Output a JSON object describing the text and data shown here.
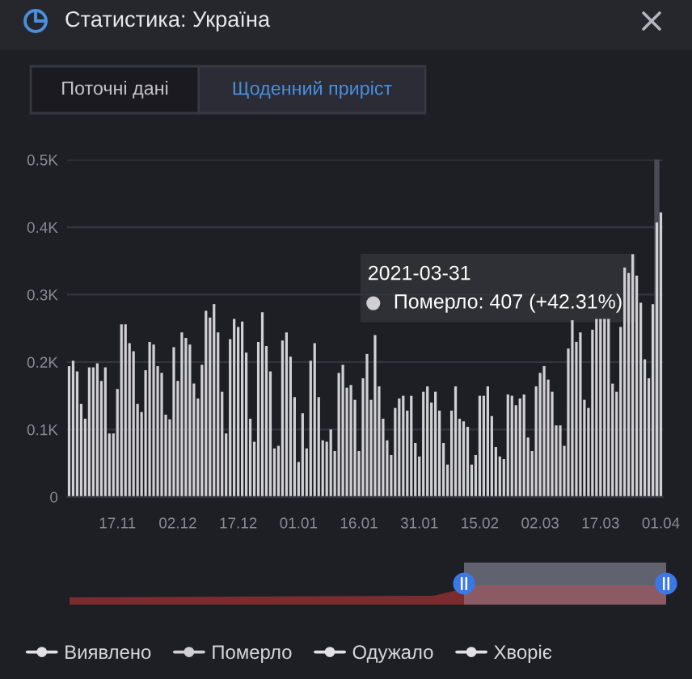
{
  "chart_data": {
    "type": "bar",
    "title": "Статистика: Україна",
    "annotations": [
      "Поточні дані",
      "Щоденний приріст",
      "2021-03-31",
      "Померло: 407 (+42.31%)"
    ],
    "x": [
      "2020-11-05",
      "2020-11-06",
      "2020-11-07",
      "2020-11-08",
      "2020-11-09",
      "2020-11-10",
      "2020-11-11",
      "2020-11-12",
      "2020-11-13",
      "2020-11-14",
      "2020-11-15",
      "2020-11-16",
      "2020-11-17",
      "2020-11-18",
      "2020-11-19",
      "2020-11-20",
      "2020-11-21",
      "2020-11-22",
      "2020-11-23",
      "2020-11-24",
      "2020-11-25",
      "2020-11-26",
      "2020-11-27",
      "2020-11-28",
      "2020-11-29",
      "2020-11-30",
      "2020-12-01",
      "2020-12-02",
      "2020-12-03",
      "2020-12-04",
      "2020-12-05",
      "2020-12-06",
      "2020-12-07",
      "2020-12-08",
      "2020-12-09",
      "2020-12-10",
      "2020-12-11",
      "2020-12-12",
      "2020-12-13",
      "2020-12-14",
      "2020-12-15",
      "2020-12-16",
      "2020-12-17",
      "2020-12-18",
      "2020-12-19",
      "2020-12-20",
      "2020-12-21",
      "2020-12-22",
      "2020-12-23",
      "2020-12-24",
      "2020-12-25",
      "2020-12-26",
      "2020-12-27",
      "2020-12-28",
      "2020-12-29",
      "2020-12-30",
      "2020-12-31",
      "2021-01-01",
      "2021-01-02",
      "2021-01-03",
      "2021-01-04",
      "2021-01-05",
      "2021-01-06",
      "2021-01-07",
      "2021-01-08",
      "2021-01-09",
      "2021-01-10",
      "2021-01-11",
      "2021-01-12",
      "2021-01-13",
      "2021-01-14",
      "2021-01-15",
      "2021-01-16",
      "2021-01-17",
      "2021-01-18",
      "2021-01-19",
      "2021-01-20",
      "2021-01-21",
      "2021-01-22",
      "2021-01-23",
      "2021-01-24",
      "2021-01-25",
      "2021-01-26",
      "2021-01-27",
      "2021-01-28",
      "2021-01-29",
      "2021-01-30",
      "2021-01-31",
      "2021-02-01",
      "2021-02-02",
      "2021-02-03",
      "2021-02-04",
      "2021-02-05",
      "2021-02-06",
      "2021-02-07",
      "2021-02-08",
      "2021-02-09",
      "2021-02-10",
      "2021-02-11",
      "2021-02-12",
      "2021-02-13",
      "2021-02-14",
      "2021-02-15",
      "2021-02-16",
      "2021-02-17",
      "2021-02-18",
      "2021-02-19",
      "2021-02-20",
      "2021-02-21",
      "2021-02-22",
      "2021-02-23",
      "2021-02-24",
      "2021-02-25",
      "2021-02-26",
      "2021-02-27",
      "2021-02-28",
      "2021-03-01",
      "2021-03-02",
      "2021-03-03",
      "2021-03-04",
      "2021-03-05",
      "2021-03-06",
      "2021-03-07",
      "2021-03-08",
      "2021-03-09",
      "2021-03-10",
      "2021-03-11",
      "2021-03-12",
      "2021-03-13",
      "2021-03-14",
      "2021-03-15",
      "2021-03-16",
      "2021-03-17",
      "2021-03-18",
      "2021-03-19",
      "2021-03-20",
      "2021-03-21",
      "2021-03-22",
      "2021-03-23",
      "2021-03-24",
      "2021-03-25",
      "2021-03-26",
      "2021-03-27",
      "2021-03-28",
      "2021-03-29",
      "2021-03-30",
      "2021-03-31",
      "2021-04-01"
    ],
    "series": [
      {
        "name": "Виявлено",
        "color": "#e2e2e6",
        "values": [
          null,
          null,
          null,
          null,
          null,
          null,
          null,
          null,
          null,
          null,
          null,
          null,
          null,
          null,
          null,
          null,
          null,
          null,
          null,
          null,
          null,
          null,
          null,
          null,
          null,
          null,
          null,
          null,
          null,
          null,
          null,
          null,
          null,
          null,
          null,
          null,
          null,
          null,
          null,
          null,
          null,
          null,
          null,
          null,
          null,
          null,
          null,
          null,
          null,
          null,
          null,
          null,
          null,
          null,
          null,
          null,
          null,
          null,
          null,
          null,
          null,
          null,
          null,
          null,
          null,
          null,
          null,
          null,
          null,
          null,
          null,
          null,
          null,
          null,
          null,
          null,
          null,
          null,
          null,
          null,
          null,
          null,
          null,
          null,
          null,
          null,
          null,
          null,
          null,
          null,
          null,
          null,
          null,
          null,
          null,
          null,
          null,
          null,
          null,
          null,
          null,
          null,
          null,
          null,
          null,
          null,
          null,
          null,
          null,
          null,
          null,
          null,
          null,
          null,
          null,
          null,
          null,
          null,
          null,
          null,
          null,
          null,
          null,
          null,
          null,
          null,
          null,
          null,
          null,
          null,
          null,
          null,
          null,
          null,
          null,
          null,
          null,
          null,
          null,
          null,
          null,
          null,
          null,
          null,
          null,
          null,
          null,
          null
        ]
      },
      {
        "name": "Померло",
        "color": "#cfcfd4",
        "values": [
          194,
          202,
          186,
          138,
          116,
          192,
          192,
          198,
          172,
          192,
          94,
          94,
          160,
          256,
          256,
          228,
          216,
          138,
          126,
          188,
          230,
          226,
          194,
          184,
          122,
          115,
          222,
          172,
          244,
          236,
          226,
          168,
          146,
          196,
          276,
          266,
          286,
          244,
          156,
          94,
          234,
          264,
          252,
          260,
          214,
          116,
          82,
          230,
          274,
          224,
          186,
          72,
          76,
          232,
          244,
          208,
          148,
          52,
          124,
          72,
          202,
          228,
          148,
          84,
          82,
          100,
          68,
          184,
          196,
          162,
          166,
          144,
          68,
          176,
          212,
          144,
          240,
          164,
          116,
          84,
          62,
          132,
          146,
          150,
          128,
          150,
          80,
          60,
          156,
          164,
          140,
          156,
          128,
          80,
          48,
          128,
          164,
          116,
          112,
          104,
          48,
          62,
          150,
          150,
          164,
          120,
          74,
          60,
          56,
          152,
          150,
          136,
          146,
          152,
          88,
          68,
          164,
          184,
          194,
          174,
          156,
          106,
          106,
          76,
          220,
          262,
          230,
          244,
          144,
          132,
          248,
          264,
          264,
          264,
          264,
          168,
          156,
          252,
          340,
          332,
          360,
          328,
          288,
          204,
          176,
          286,
          407,
          422
        ]
      },
      {
        "name": "Одужало",
        "color": "#e2e2e6",
        "values": [
          null,
          null,
          null,
          null,
          null,
          null,
          null,
          null,
          null,
          null,
          null,
          null,
          null,
          null,
          null,
          null,
          null,
          null,
          null,
          null,
          null,
          null,
          null,
          null,
          null,
          null,
          null,
          null,
          null,
          null,
          null,
          null,
          null,
          null,
          null,
          null,
          null,
          null,
          null,
          null,
          null,
          null,
          null,
          null,
          null,
          null,
          null,
          null,
          null,
          null,
          null,
          null,
          null,
          null,
          null,
          null,
          null,
          null,
          null,
          null,
          null,
          null,
          null,
          null,
          null,
          null,
          null,
          null,
          null,
          null,
          null,
          null,
          null,
          null,
          null,
          null,
          null,
          null,
          null,
          null,
          null,
          null,
          null,
          null,
          null,
          null,
          null,
          null,
          null,
          null,
          null,
          null,
          null,
          null,
          null,
          null,
          null,
          null,
          null,
          null,
          null,
          null,
          null,
          null,
          null,
          null,
          null,
          null,
          null,
          null,
          null,
          null,
          null,
          null,
          null,
          null,
          null,
          null,
          null,
          null,
          null,
          null,
          null,
          null,
          null,
          null,
          null,
          null,
          null,
          null,
          null,
          null,
          null,
          null,
          null,
          null,
          null,
          null,
          null,
          null,
          null,
          null,
          null,
          null,
          null,
          null,
          null,
          null
        ]
      },
      {
        "name": "Хворіє",
        "color": "#e2e2e6",
        "values": [
          null,
          null,
          null,
          null,
          null,
          null,
          null,
          null,
          null,
          null,
          null,
          null,
          null,
          null,
          null,
          null,
          null,
          null,
          null,
          null,
          null,
          null,
          null,
          null,
          null,
          null,
          null,
          null,
          null,
          null,
          null,
          null,
          null,
          null,
          null,
          null,
          null,
          null,
          null,
          null,
          null,
          null,
          null,
          null,
          null,
          null,
          null,
          null,
          null,
          null,
          null,
          null,
          null,
          null,
          null,
          null,
          null,
          null,
          null,
          null,
          null,
          null,
          null,
          null,
          null,
          null,
          null,
          null,
          null,
          null,
          null,
          null,
          null,
          null,
          null,
          null,
          null,
          null,
          null,
          null,
          null,
          null,
          null,
          null,
          null,
          null,
          null,
          null,
          null,
          null,
          null,
          null,
          null,
          null,
          null,
          null,
          null,
          null,
          null,
          null,
          null,
          null,
          null,
          null,
          null,
          null,
          null,
          null,
          null,
          null,
          null,
          null,
          null,
          null,
          null,
          null,
          null,
          null,
          null,
          null,
          null,
          null,
          null,
          null,
          null,
          null,
          null,
          null,
          null,
          null,
          null,
          null,
          null,
          null,
          null,
          null,
          null,
          null,
          null,
          null,
          null,
          null,
          null,
          null,
          null,
          null,
          null,
          null
        ]
      }
    ],
    "xlim": [
      "2020-11-04T12:00",
      "2021-04-01T12:00"
    ],
    "xticks": [
      {
        "value": "2020-11-17",
        "label": "17.11"
      },
      {
        "value": "2020-12-02",
        "label": "02.12"
      },
      {
        "value": "2020-12-17",
        "label": "17.12"
      },
      {
        "value": "2021-01-01",
        "label": "01.01"
      },
      {
        "value": "2021-01-16",
        "label": "16.01"
      },
      {
        "value": "2021-01-31",
        "label": "31.01"
      },
      {
        "value": "2021-02-15",
        "label": "15.02"
      },
      {
        "value": "2021-03-02",
        "label": "02.03"
      },
      {
        "value": "2021-03-17",
        "label": "17.03"
      },
      {
        "value": "2021-04-01",
        "label": "01.04"
      }
    ],
    "ylim": [
      0,
      500
    ],
    "yticks": [
      0,
      {
        "value": 100,
        "label": "0.1K"
      },
      {
        "value": 200,
        "label": "0.2K"
      },
      {
        "value": 300,
        "label": "0.3K"
      },
      {
        "value": 400,
        "label": "0.4K"
      },
      {
        "value": 500,
        "label": "0.5K"
      }
    ],
    "grid": "y",
    "legend": "bottom",
    "ref_lines": [
      {
        "axis": "x",
        "value": "2021-03-31",
        "color": "#4b4b55"
      }
    ]
  }
}
